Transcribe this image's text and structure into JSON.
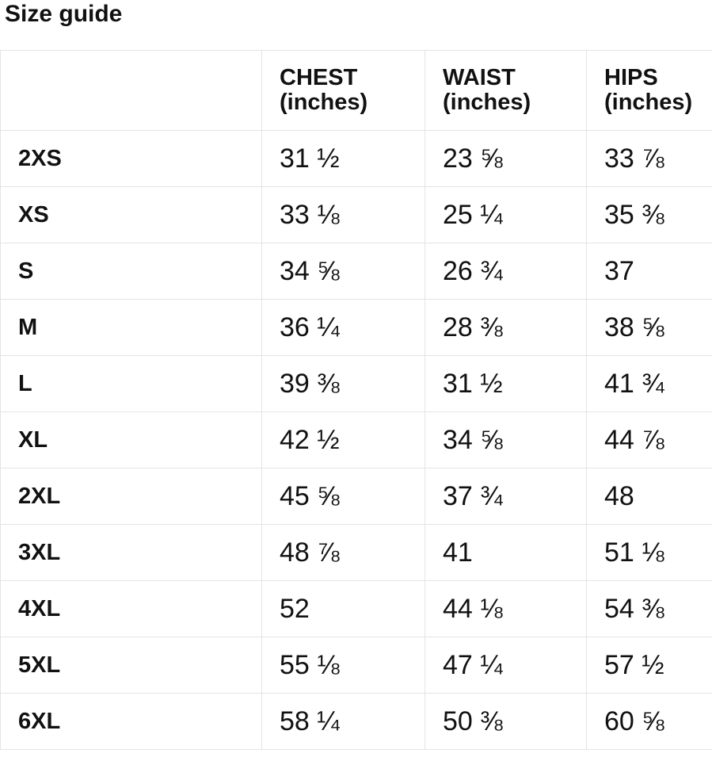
{
  "page": {
    "title": "Size guide"
  },
  "colors": {
    "background": "#ffffff",
    "border": "#e4e4e4",
    "text": "#111111"
  },
  "table": {
    "headers": {
      "size": "",
      "chest": {
        "line1": "CHEST",
        "line2": "(inches)"
      },
      "waist": {
        "line1": "WAIST",
        "line2": "(inches)"
      },
      "hips": {
        "line1": "HIPS",
        "line2": "(inches)"
      }
    },
    "rows": [
      {
        "size": "2XS",
        "chest": "31 ½",
        "waist": "23 ⅝",
        "hips": "33 ⅞"
      },
      {
        "size": "XS",
        "chest": "33 ⅛",
        "waist": "25 ¼",
        "hips": "35 ⅜"
      },
      {
        "size": "S",
        "chest": "34 ⅝",
        "waist": "26 ¾",
        "hips": "37"
      },
      {
        "size": "M",
        "chest": "36 ¼",
        "waist": "28 ⅜",
        "hips": "38 ⅝"
      },
      {
        "size": "L",
        "chest": "39 ⅜",
        "waist": "31 ½",
        "hips": "41 ¾"
      },
      {
        "size": "XL",
        "chest": "42 ½",
        "waist": "34 ⅝",
        "hips": "44 ⅞"
      },
      {
        "size": "2XL",
        "chest": "45 ⅝",
        "waist": "37 ¾",
        "hips": "48"
      },
      {
        "size": "3XL",
        "chest": "48 ⅞",
        "waist": "41",
        "hips": "51 ⅛"
      },
      {
        "size": "4XL",
        "chest": "52",
        "waist": "44 ⅛",
        "hips": "54 ⅜"
      },
      {
        "size": "5XL",
        "chest": "55 ⅛",
        "waist": "47 ¼",
        "hips": "57 ½"
      },
      {
        "size": "6XL",
        "chest": "58 ¼",
        "waist": "50 ⅜",
        "hips": "60 ⅝"
      }
    ]
  }
}
